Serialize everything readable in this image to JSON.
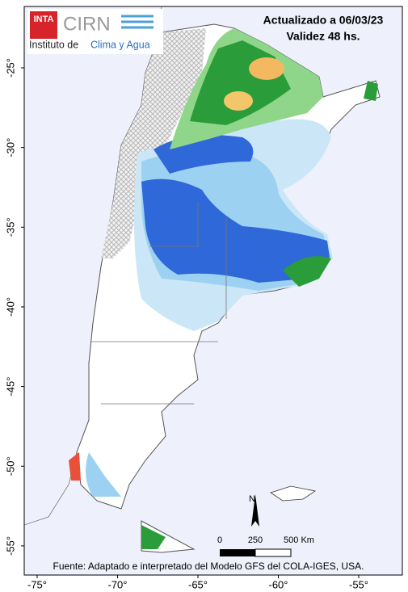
{
  "header": {
    "updated": "Actualizado a 06/03/23",
    "validity": "Validez 48 hs."
  },
  "logo": {
    "inta": "INTA",
    "cirn": "CIRN",
    "prefix": "Instituto de",
    "highlight": "Clima y Agua"
  },
  "axes": {
    "lon_ticks": [
      {
        "value": -75,
        "label": "-75°"
      },
      {
        "value": -70,
        "label": "-70°"
      },
      {
        "value": -65,
        "label": "-65°"
      },
      {
        "value": -60,
        "label": "-60°"
      },
      {
        "value": -55,
        "label": "-55°"
      }
    ],
    "lat_ticks": [
      {
        "value": -25,
        "label": "-25°"
      },
      {
        "value": -30,
        "label": "-30°"
      },
      {
        "value": -35,
        "label": "-35°"
      },
      {
        "value": -40,
        "label": "-40°"
      },
      {
        "value": -45,
        "label": "-45°"
      },
      {
        "value": -50,
        "label": "-50°"
      },
      {
        "value": -55,
        "label": "-55°"
      }
    ]
  },
  "scale": {
    "north": "N",
    "labels": [
      "0",
      "250",
      "500 Km"
    ]
  },
  "source": "Fuente: Adaptado e interpretado del Modelo GFS del COLA-IGES, USA."
}
